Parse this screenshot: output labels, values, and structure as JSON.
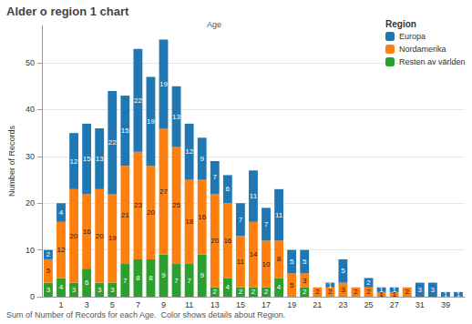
{
  "chart_data": {
    "type": "bar",
    "title": "Alder o region 1 chart",
    "x_label": "Age",
    "y_label": "Number of Records",
    "annotations": [
      "Sum of Number of Records for each Age.  Color shows details about Region."
    ],
    "legend_title": "Region",
    "legend": "top-right",
    "stacked": true,
    "data_labels": true,
    "grid": true,
    "categories": [
      null,
      "1",
      null,
      "3",
      null,
      "5",
      null,
      "7",
      null,
      "9",
      null,
      "11",
      null,
      "13",
      null,
      "15",
      null,
      "17",
      null,
      "19",
      null,
      "21",
      null,
      "23",
      null,
      "25",
      null,
      "27",
      null,
      "31",
      null,
      "39",
      null
    ],
    "series": [
      {
        "name": "Europa",
        "color": "#1f77b4",
        "values": [
          2,
          4,
          12,
          15,
          13,
          22,
          15,
          22,
          19,
          19,
          13,
          12,
          9,
          7,
          6,
          7,
          11,
          7,
          11,
          5,
          5,
          null,
          1,
          5,
          null,
          2,
          1,
          1,
          null,
          3,
          3,
          1,
          1
        ]
      },
      {
        "name": "Nordamerika",
        "color": "#ff7f0e",
        "values": [
          5,
          12,
          20,
          16,
          20,
          19,
          21,
          23,
          20,
          27,
          25,
          18,
          16,
          20,
          16,
          11,
          14,
          10,
          8,
          5,
          3,
          2,
          2,
          3,
          2,
          2,
          1,
          1,
          2,
          null,
          null,
          null,
          null
        ]
      },
      {
        "name": "Resten av världen",
        "color": "#2ca02c",
        "values": [
          3,
          4,
          3,
          6,
          3,
          3,
          7,
          8,
          8,
          9,
          7,
          7,
          9,
          2,
          4,
          2,
          2,
          2,
          4,
          null,
          2,
          null,
          null,
          null,
          null,
          null,
          null,
          null,
          null,
          null,
          null,
          null,
          null
        ]
      }
    ],
    "ylim": [
      0,
      58
    ],
    "yticks": [
      0,
      10,
      20,
      30,
      40,
      50
    ]
  }
}
